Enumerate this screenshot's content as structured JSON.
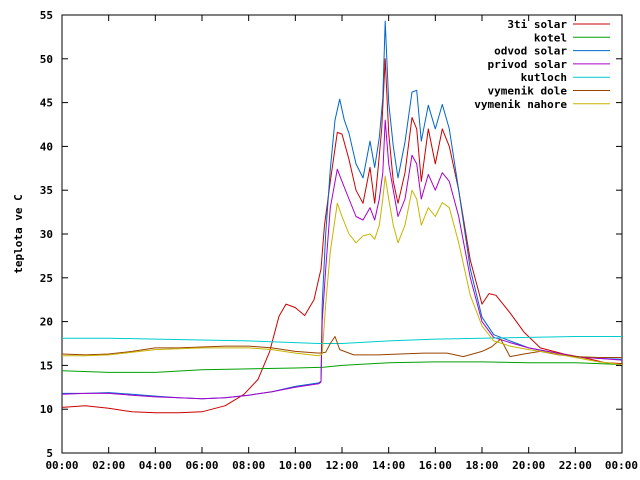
{
  "chart_data": {
    "type": "line",
    "xlabel": "",
    "ylabel": "teplota ve C",
    "xlim": [
      0,
      24
    ],
    "ylim": [
      5,
      55
    ],
    "yticks": [
      5,
      10,
      15,
      20,
      25,
      30,
      35,
      40,
      45,
      50,
      55
    ],
    "xticks": [
      0,
      2,
      4,
      6,
      8,
      10,
      12,
      14,
      16,
      18,
      20,
      22,
      24
    ],
    "xtick_labels": [
      "00:00",
      "02:00",
      "04:00",
      "06:00",
      "08:00",
      "10:00",
      "12:00",
      "14:00",
      "16:00",
      "18:00",
      "20:00",
      "22:00",
      "00:00"
    ],
    "grid": false,
    "legend_position": "top-right",
    "series": [
      {
        "name": "3ti solar",
        "color": "#cc0000",
        "points": [
          [
            0,
            10.2
          ],
          [
            1,
            10.4
          ],
          [
            2,
            10.1
          ],
          [
            3,
            9.7
          ],
          [
            4,
            9.6
          ],
          [
            5,
            9.6
          ],
          [
            6,
            9.7
          ],
          [
            7,
            10.4
          ],
          [
            7.8,
            11.7
          ],
          [
            8.4,
            13.4
          ],
          [
            8.9,
            16.6
          ],
          [
            9.3,
            20.6
          ],
          [
            9.6,
            22.0
          ],
          [
            10.0,
            21.6
          ],
          [
            10.4,
            20.7
          ],
          [
            10.8,
            22.5
          ],
          [
            11.1,
            26.0
          ],
          [
            11.25,
            31.0
          ],
          [
            11.5,
            36.0
          ],
          [
            11.8,
            41.6
          ],
          [
            12.0,
            41.4
          ],
          [
            12.3,
            38.5
          ],
          [
            12.6,
            35.0
          ],
          [
            12.9,
            33.5
          ],
          [
            13.2,
            37.6
          ],
          [
            13.4,
            33.5
          ],
          [
            13.55,
            37.6
          ],
          [
            13.7,
            42.0
          ],
          [
            13.85,
            50.0
          ],
          [
            14.0,
            41.5
          ],
          [
            14.2,
            36.0
          ],
          [
            14.4,
            33.5
          ],
          [
            14.7,
            37.0
          ],
          [
            15.0,
            43.3
          ],
          [
            15.2,
            42.0
          ],
          [
            15.4,
            36.0
          ],
          [
            15.7,
            42.0
          ],
          [
            16.0,
            38.0
          ],
          [
            16.3,
            42.0
          ],
          [
            16.6,
            40.0
          ],
          [
            17.0,
            35.0
          ],
          [
            17.5,
            27.0
          ],
          [
            18.0,
            22.0
          ],
          [
            18.3,
            23.2
          ],
          [
            18.6,
            23.0
          ],
          [
            19.2,
            21.0
          ],
          [
            19.8,
            18.8
          ],
          [
            20.5,
            17.0
          ],
          [
            21.5,
            16.3
          ],
          [
            22.5,
            15.8
          ],
          [
            23.3,
            15.3
          ],
          [
            24,
            15.2
          ]
        ]
      },
      {
        "name": "kotel",
        "color": "#00a000",
        "points": [
          [
            0,
            14.4
          ],
          [
            2,
            14.2
          ],
          [
            4,
            14.2
          ],
          [
            6,
            14.5
          ],
          [
            8,
            14.6
          ],
          [
            10,
            14.7
          ],
          [
            11.2,
            14.8
          ],
          [
            12,
            15.0
          ],
          [
            14,
            15.3
          ],
          [
            16,
            15.4
          ],
          [
            18,
            15.4
          ],
          [
            20,
            15.3
          ],
          [
            22,
            15.3
          ],
          [
            24,
            15.1
          ]
        ]
      },
      {
        "name": "odvod solar",
        "color": "#0066cc",
        "points": [
          [
            0,
            11.8
          ],
          [
            1,
            11.8
          ],
          [
            2,
            11.9
          ],
          [
            3,
            11.7
          ],
          [
            4,
            11.5
          ],
          [
            5,
            11.3
          ],
          [
            6,
            11.2
          ],
          [
            7,
            11.3
          ],
          [
            8,
            11.6
          ],
          [
            9,
            12.0
          ],
          [
            10,
            12.6
          ],
          [
            11,
            13.0
          ],
          [
            11.1,
            13.2
          ],
          [
            11.15,
            22.0
          ],
          [
            11.3,
            30.0
          ],
          [
            11.5,
            37.4
          ],
          [
            11.7,
            43.0
          ],
          [
            11.9,
            45.4
          ],
          [
            12.1,
            43.0
          ],
          [
            12.3,
            41.5
          ],
          [
            12.6,
            38.0
          ],
          [
            12.9,
            36.4
          ],
          [
            13.2,
            40.6
          ],
          [
            13.4,
            37.6
          ],
          [
            13.6,
            41.0
          ],
          [
            13.75,
            45.5
          ],
          [
            13.85,
            54.3
          ],
          [
            14.0,
            45.0
          ],
          [
            14.2,
            40.0
          ],
          [
            14.4,
            36.4
          ],
          [
            14.7,
            40.5
          ],
          [
            15.0,
            46.2
          ],
          [
            15.2,
            46.4
          ],
          [
            15.4,
            40.6
          ],
          [
            15.7,
            44.7
          ],
          [
            16.0,
            42.0
          ],
          [
            16.3,
            44.8
          ],
          [
            16.6,
            42.0
          ],
          [
            17.0,
            35.0
          ],
          [
            17.5,
            26.0
          ],
          [
            18.0,
            20.5
          ],
          [
            18.5,
            18.5
          ],
          [
            19.2,
            17.8
          ],
          [
            20.0,
            17.0
          ],
          [
            21.0,
            16.5
          ],
          [
            22.0,
            16.0
          ],
          [
            23.0,
            15.8
          ],
          [
            24,
            15.7
          ]
        ]
      },
      {
        "name": "privod solar",
        "color": "#aa00cc",
        "points": [
          [
            0,
            11.7
          ],
          [
            1,
            11.8
          ],
          [
            2,
            11.8
          ],
          [
            3,
            11.6
          ],
          [
            4,
            11.4
          ],
          [
            5,
            11.3
          ],
          [
            6,
            11.2
          ],
          [
            7,
            11.3
          ],
          [
            8,
            11.6
          ],
          [
            9,
            12.0
          ],
          [
            10,
            12.5
          ],
          [
            11,
            12.9
          ],
          [
            11.1,
            13.1
          ],
          [
            11.15,
            20.0
          ],
          [
            11.3,
            26.0
          ],
          [
            11.5,
            33.0
          ],
          [
            11.8,
            37.4
          ],
          [
            12.0,
            36.0
          ],
          [
            12.3,
            34.0
          ],
          [
            12.6,
            32.0
          ],
          [
            12.9,
            31.6
          ],
          [
            13.2,
            33.0
          ],
          [
            13.4,
            31.6
          ],
          [
            13.6,
            34.0
          ],
          [
            13.75,
            37.0
          ],
          [
            13.85,
            43.0
          ],
          [
            14.0,
            38.0
          ],
          [
            14.2,
            35.0
          ],
          [
            14.4,
            32.0
          ],
          [
            14.7,
            34.0
          ],
          [
            15.0,
            39.0
          ],
          [
            15.2,
            38.0
          ],
          [
            15.4,
            34.0
          ],
          [
            15.7,
            36.8
          ],
          [
            16.0,
            35.0
          ],
          [
            16.3,
            37.0
          ],
          [
            16.6,
            36.0
          ],
          [
            17.0,
            32.0
          ],
          [
            17.5,
            25.0
          ],
          [
            18.0,
            20.0
          ],
          [
            18.5,
            18.2
          ],
          [
            19.2,
            17.6
          ],
          [
            20.0,
            17.0
          ],
          [
            21.0,
            16.5
          ],
          [
            22.0,
            16.0
          ],
          [
            23.0,
            15.8
          ],
          [
            24,
            15.6
          ]
        ]
      },
      {
        "name": "kutloch",
        "color": "#00cccc",
        "points": [
          [
            0,
            18.1
          ],
          [
            2,
            18.1
          ],
          [
            4,
            18.0
          ],
          [
            6,
            17.9
          ],
          [
            8,
            17.8
          ],
          [
            10,
            17.6
          ],
          [
            11,
            17.5
          ],
          [
            12,
            17.5
          ],
          [
            14,
            17.8
          ],
          [
            16,
            18.0
          ],
          [
            18,
            18.1
          ],
          [
            20,
            18.2
          ],
          [
            22,
            18.3
          ],
          [
            24,
            18.3
          ]
        ]
      },
      {
        "name": "vymenik dole",
        "color": "#994400",
        "points": [
          [
            0,
            16.3
          ],
          [
            1,
            16.2
          ],
          [
            2,
            16.3
          ],
          [
            3,
            16.6
          ],
          [
            4,
            17.0
          ],
          [
            5,
            17.0
          ],
          [
            6,
            17.1
          ],
          [
            7,
            17.2
          ],
          [
            8,
            17.2
          ],
          [
            9,
            17.0
          ],
          [
            10,
            16.6
          ],
          [
            11,
            16.4
          ],
          [
            11.3,
            16.5
          ],
          [
            11.5,
            17.5
          ],
          [
            11.7,
            18.3
          ],
          [
            11.9,
            16.8
          ],
          [
            12.5,
            16.2
          ],
          [
            13.5,
            16.2
          ],
          [
            14.5,
            16.3
          ],
          [
            15.5,
            16.4
          ],
          [
            16.5,
            16.4
          ],
          [
            17.2,
            16.0
          ],
          [
            17.6,
            16.3
          ],
          [
            18.0,
            16.6
          ],
          [
            18.4,
            17.1
          ],
          [
            18.8,
            18.0
          ],
          [
            19.2,
            16.0
          ],
          [
            19.8,
            16.3
          ],
          [
            20.5,
            16.6
          ],
          [
            21.3,
            16.2
          ],
          [
            22.0,
            16.0
          ],
          [
            23.0,
            15.9
          ],
          [
            24,
            15.9
          ]
        ]
      },
      {
        "name": "vymenik nahore",
        "color": "#c8b400",
        "points": [
          [
            0,
            16.1
          ],
          [
            1,
            16.1
          ],
          [
            2,
            16.2
          ],
          [
            3,
            16.5
          ],
          [
            4,
            16.8
          ],
          [
            5,
            16.9
          ],
          [
            6,
            17.0
          ],
          [
            7,
            17.0
          ],
          [
            8,
            17.0
          ],
          [
            9,
            16.8
          ],
          [
            10,
            16.4
          ],
          [
            11,
            16.1
          ],
          [
            11.15,
            16.3
          ],
          [
            11.3,
            22.0
          ],
          [
            11.5,
            28.0
          ],
          [
            11.8,
            33.5
          ],
          [
            12.0,
            32.0
          ],
          [
            12.3,
            30.0
          ],
          [
            12.6,
            29.0
          ],
          [
            12.9,
            29.8
          ],
          [
            13.2,
            30.0
          ],
          [
            13.4,
            29.4
          ],
          [
            13.6,
            31.0
          ],
          [
            13.75,
            34.0
          ],
          [
            13.85,
            36.6
          ],
          [
            14.0,
            34.0
          ],
          [
            14.2,
            31.0
          ],
          [
            14.4,
            29.0
          ],
          [
            14.7,
            31.0
          ],
          [
            15.0,
            35.0
          ],
          [
            15.2,
            34.0
          ],
          [
            15.4,
            31.0
          ],
          [
            15.7,
            33.0
          ],
          [
            16.0,
            32.0
          ],
          [
            16.3,
            33.6
          ],
          [
            16.6,
            33.0
          ],
          [
            17.0,
            29.0
          ],
          [
            17.5,
            23.0
          ],
          [
            18.0,
            19.5
          ],
          [
            18.5,
            17.8
          ],
          [
            19.2,
            17.2
          ],
          [
            20.0,
            16.8
          ],
          [
            21.0,
            16.4
          ],
          [
            22.0,
            15.9
          ],
          [
            23.0,
            15.4
          ],
          [
            24,
            15.1
          ]
        ]
      }
    ]
  }
}
